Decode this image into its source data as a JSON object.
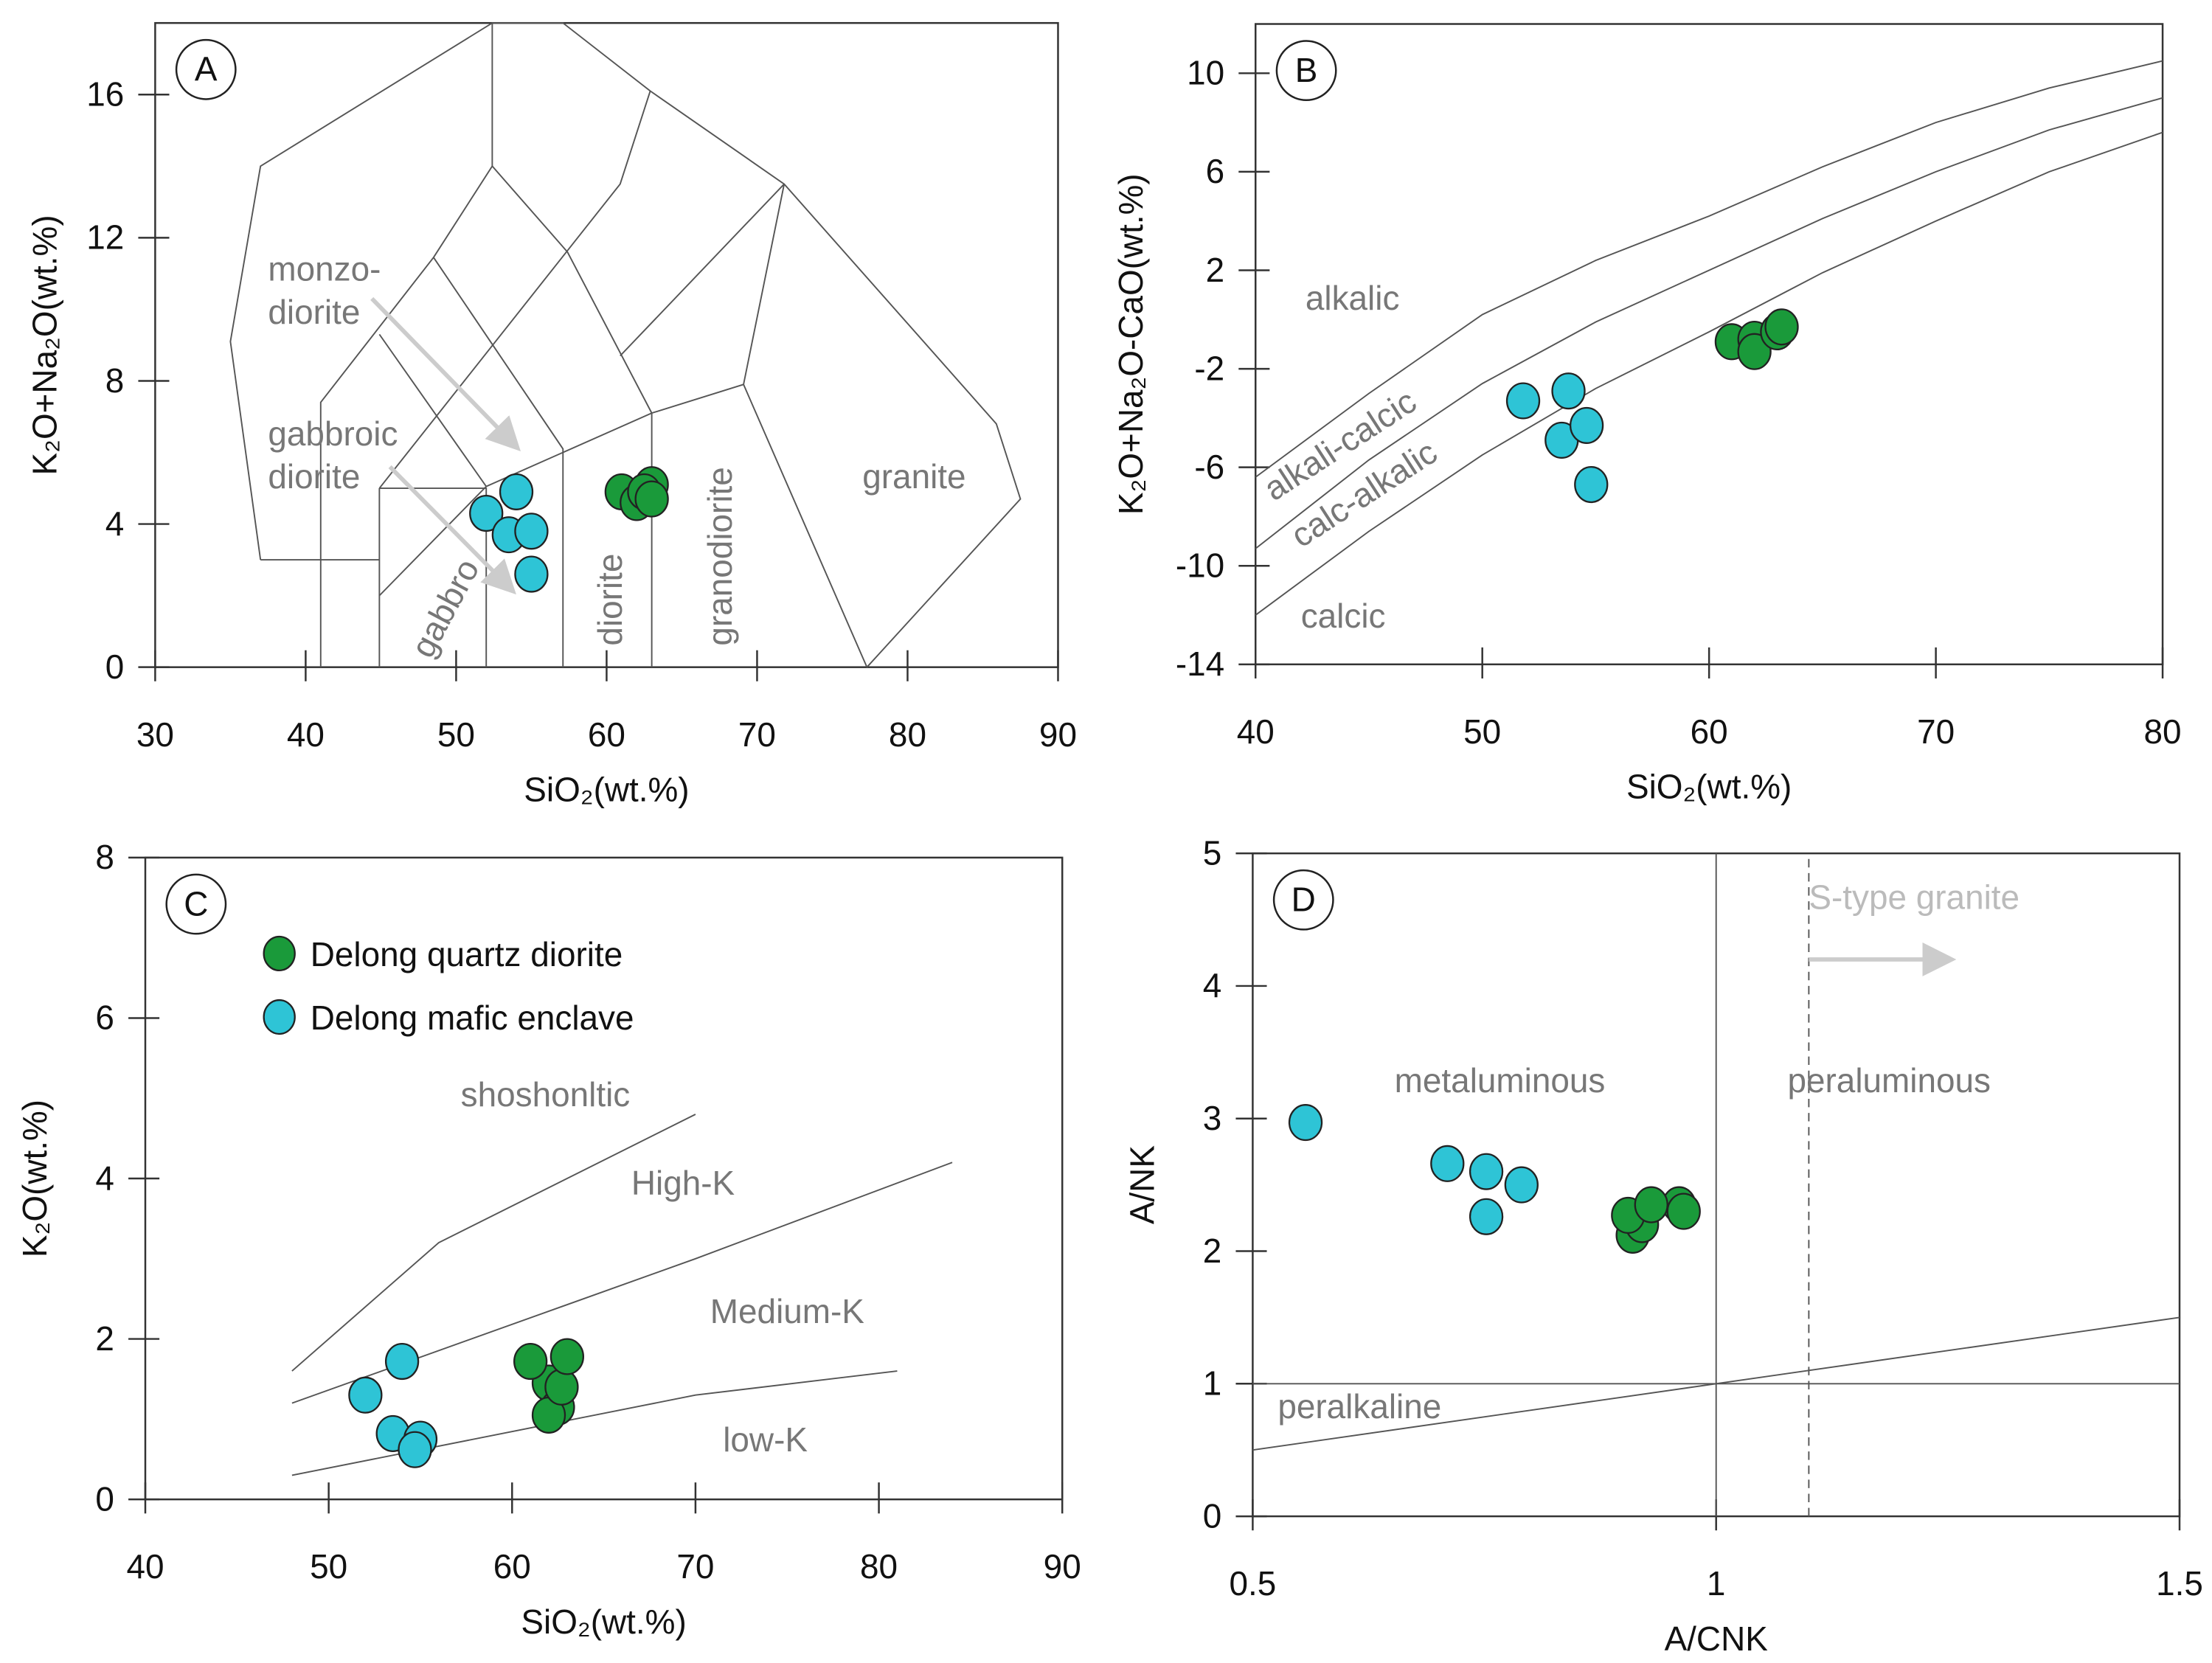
{
  "colors": {
    "quartz_diorite": "#1a9a3a",
    "mafic_enclave": "#2ec4d6",
    "boundary": "#555555",
    "region_label": "#777777",
    "arrow": "#cccccc"
  },
  "legend": [
    {
      "label": "Delong quartz diorite",
      "series": "quartz_diorite"
    },
    {
      "label": "Delong mafic enclave",
      "series": "mafic_enclave"
    }
  ],
  "chart_data": [
    {
      "id": "A",
      "type": "scatter",
      "panel_label": "A",
      "xlabel": "SiO₂(wt.%)",
      "ylabel": "K₂O+Na₂O(wt.%)",
      "xlim": [
        30,
        90
      ],
      "ylim": [
        0,
        18
      ],
      "xticks": [
        30,
        40,
        50,
        60,
        70,
        80,
        90
      ],
      "yticks": [
        0,
        4,
        8,
        12,
        16
      ],
      "series": [
        {
          "name": "Delong quartz diorite",
          "key": "quartz_diorite",
          "points": [
            [
              61,
              4.9
            ],
            [
              62,
              4.6
            ],
            [
              63,
              5.1
            ],
            [
              62.5,
              4.9
            ],
            [
              63,
              4.7
            ]
          ]
        },
        {
          "name": "Delong mafic enclave",
          "key": "mafic_enclave",
          "points": [
            [
              52,
              4.3
            ],
            [
              54,
              4.9
            ],
            [
              53.5,
              3.7
            ],
            [
              55,
              3.8
            ],
            [
              55,
              2.6
            ]
          ]
        }
      ],
      "boundaries": [
        [
          [
            37,
            3
          ],
          [
            35,
            9.1
          ],
          [
            37,
            14
          ],
          [
            52.4,
            18
          ],
          [
            57.1,
            18
          ],
          [
            62.9,
            16.1
          ],
          [
            71.8,
            13.5
          ],
          [
            85.9,
            6.8
          ],
          [
            87.5,
            4.7
          ],
          [
            77.3,
            0
          ]
        ],
        [
          [
            52.4,
            18
          ],
          [
            52.4,
            14
          ]
        ],
        [
          [
            52.4,
            14
          ],
          [
            48.5,
            11.45
          ],
          [
            41,
            7.4
          ],
          [
            41,
            0
          ]
        ],
        [
          [
            52.4,
            14
          ],
          [
            57.4,
            11.6
          ],
          [
            63,
            7.1
          ],
          [
            63,
            0
          ]
        ],
        [
          [
            62.9,
            16.1
          ],
          [
            60.9,
            13.5
          ],
          [
            44.9,
            5.0
          ]
        ],
        [
          [
            48.5,
            11.45
          ],
          [
            57.1,
            6.1
          ],
          [
            57.1,
            0
          ]
        ],
        [
          [
            44.9,
            9.3
          ],
          [
            52,
            5.05
          ]
        ],
        [
          [
            71.8,
            13.5
          ],
          [
            69.1,
            7.9
          ],
          [
            77.3,
            0
          ]
        ],
        [
          [
            71.8,
            13.5
          ],
          [
            60.9,
            8.7
          ]
        ],
        [
          [
            52,
            5.05
          ],
          [
            63,
            7.1
          ],
          [
            69.1,
            7.9
          ]
        ],
        [
          [
            44.9,
            5.0
          ],
          [
            52,
            5.0
          ],
          [
            52,
            0
          ]
        ],
        [
          [
            44.9,
            5.0
          ],
          [
            44.9,
            0
          ]
        ],
        [
          [
            37,
            3
          ],
          [
            44.9,
            3
          ]
        ],
        [
          [
            44.9,
            2.0
          ],
          [
            52,
            5.05
          ]
        ]
      ],
      "arrows": [
        [
          [
            44.4,
            10.3
          ],
          [
            53.9,
            6.2
          ]
        ],
        [
          [
            45.6,
            5.6
          ],
          [
            53.6,
            2.2
          ]
        ]
      ],
      "region_labels": [
        {
          "text": "monzo-",
          "x": 37.5,
          "y": 10.8,
          "rot": 0
        },
        {
          "text": "diorite",
          "x": 37.5,
          "y": 9.6,
          "rot": 0
        },
        {
          "text": "gabbroic",
          "x": 37.5,
          "y": 6.2,
          "rot": 0
        },
        {
          "text": "diorite",
          "x": 37.5,
          "y": 5.0,
          "rot": 0
        },
        {
          "text": "gabbro",
          "x": 48.3,
          "y": 0.2,
          "rot": -62
        },
        {
          "text": "diorite",
          "x": 61,
          "y": 0.6,
          "rot": -90
        },
        {
          "text": "granodiorite",
          "x": 68.3,
          "y": 0.6,
          "rot": -90
        },
        {
          "text": "granite",
          "x": 77,
          "y": 5.0,
          "rot": 0
        }
      ]
    },
    {
      "id": "B",
      "type": "scatter",
      "panel_label": "B",
      "xlabel": "SiO₂(wt.%)",
      "ylabel": "K₂O+Na₂O-CaO(wt.%)",
      "xlim": [
        40,
        80
      ],
      "ylim": [
        -14,
        12
      ],
      "xticks": [
        40,
        50,
        60,
        70,
        80
      ],
      "yticks": [
        -14,
        -10,
        -6,
        -2,
        2,
        6,
        10
      ],
      "series": [
        {
          "name": "Delong quartz diorite",
          "key": "quartz_diorite",
          "points": [
            [
              61,
              -0.9
            ],
            [
              62,
              -0.8
            ],
            [
              62,
              -1.3
            ],
            [
              63,
              -0.5
            ],
            [
              63.2,
              -0.3
            ]
          ]
        },
        {
          "name": "Delong mafic enclave",
          "key": "mafic_enclave",
          "points": [
            [
              51.8,
              -3.3
            ],
            [
              53.8,
              -2.9
            ],
            [
              53.5,
              -4.9
            ],
            [
              54.6,
              -4.3
            ],
            [
              54.8,
              -6.7
            ]
          ]
        }
      ],
      "boundaries": [
        [
          [
            40,
            -6.4
          ],
          [
            45,
            -3.0
          ],
          [
            50,
            0.2
          ],
          [
            55,
            2.4
          ],
          [
            60,
            4.2
          ],
          [
            65,
            6.2
          ],
          [
            70,
            8.0
          ],
          [
            75,
            9.4
          ],
          [
            80,
            10.5
          ]
        ],
        [
          [
            40,
            -9.3
          ],
          [
            45,
            -5.7
          ],
          [
            50,
            -2.6
          ],
          [
            55,
            -0.1
          ],
          [
            60,
            2.0
          ],
          [
            65,
            4.1
          ],
          [
            70,
            6.0
          ],
          [
            75,
            7.7
          ],
          [
            80,
            9.0
          ]
        ],
        [
          [
            40,
            -12.0
          ],
          [
            45,
            -8.6
          ],
          [
            50,
            -5.5
          ],
          [
            55,
            -2.8
          ],
          [
            60,
            -0.5
          ],
          [
            65,
            1.9
          ],
          [
            70,
            4.0
          ],
          [
            75,
            6.0
          ],
          [
            80,
            7.6
          ]
        ]
      ],
      "region_labels": [
        {
          "text": "alkalic",
          "x": 42.2,
          "y": 0.4,
          "rot": 0
        },
        {
          "text": "alkali-calcic",
          "x": 40.8,
          "y": -7.4,
          "rot": -33
        },
        {
          "text": "calc-alkalic",
          "x": 42,
          "y": -9.3,
          "rot": -33
        },
        {
          "text": "calcic",
          "x": 42,
          "y": -12.5,
          "rot": 0
        }
      ]
    },
    {
      "id": "C",
      "type": "scatter",
      "panel_label": "C",
      "xlabel": "SiO₂(wt.%)",
      "ylabel": "K₂O(wt.%)",
      "xlim": [
        40,
        90
      ],
      "ylim": [
        0,
        8
      ],
      "xticks": [
        40,
        50,
        60,
        70,
        80,
        90
      ],
      "yticks": [
        0,
        2,
        4,
        6,
        8
      ],
      "series": [
        {
          "name": "Delong quartz diorite",
          "key": "quartz_diorite",
          "points": [
            [
              62,
              1.45
            ],
            [
              62.5,
              1.15
            ],
            [
              62,
              1.05
            ],
            [
              62.7,
              1.4
            ],
            [
              61,
              1.72
            ],
            [
              63,
              1.78
            ]
          ]
        },
        {
          "name": "Delong mafic enclave",
          "key": "mafic_enclave",
          "points": [
            [
              52,
              1.3
            ],
            [
              54,
              1.72
            ],
            [
              53.5,
              0.82
            ],
            [
              55,
              0.75
            ],
            [
              54.7,
              0.62
            ]
          ]
        }
      ],
      "boundaries": [
        [
          [
            48,
            1.6
          ],
          [
            56,
            3.2
          ],
          [
            70,
            4.8
          ]
        ],
        [
          [
            48,
            1.2
          ],
          [
            70,
            3.0
          ],
          [
            84,
            4.2
          ]
        ],
        [
          [
            48,
            0.3
          ],
          [
            70,
            1.3
          ],
          [
            81,
            1.6
          ]
        ]
      ],
      "region_labels": [
        {
          "text": "shoshonltic",
          "x": 57.2,
          "y": 4.9,
          "rot": 0
        },
        {
          "text": "High-K",
          "x": 66.5,
          "y": 3.8,
          "rot": 0
        },
        {
          "text": "Medium-K",
          "x": 70.8,
          "y": 2.2,
          "rot": 0
        },
        {
          "text": "low-K",
          "x": 71.5,
          "y": 0.6,
          "rot": 0
        }
      ]
    },
    {
      "id": "D",
      "type": "scatter",
      "panel_label": "D",
      "xlabel": "A/CNK",
      "ylabel": "A/NK",
      "xlim": [
        0.5,
        1.5
      ],
      "ylim": [
        0,
        5
      ],
      "xticks": [
        0.5,
        1,
        1.5
      ],
      "yticks": [
        0,
        1,
        2,
        3,
        4,
        5
      ],
      "series": [
        {
          "name": "Delong quartz diorite",
          "key": "quartz_diorite",
          "points": [
            [
              0.91,
              2.12
            ],
            [
              0.92,
              2.2
            ],
            [
              0.905,
              2.27
            ],
            [
              0.96,
              2.35
            ],
            [
              0.965,
              2.3
            ],
            [
              0.93,
              2.35
            ]
          ]
        },
        {
          "name": "Delong mafic enclave",
          "key": "mafic_enclave",
          "points": [
            [
              0.557,
              2.97
            ],
            [
              0.71,
              2.66
            ],
            [
              0.752,
              2.6
            ],
            [
              0.79,
              2.5
            ],
            [
              0.752,
              2.26
            ]
          ]
        }
      ],
      "boundaries": [
        [
          [
            1,
            0
          ],
          [
            1,
            5
          ]
        ],
        [
          [
            0.5,
            1
          ],
          [
            1.5,
            1
          ]
        ],
        [
          [
            0.5,
            0.5
          ],
          [
            1.5,
            1.5
          ]
        ]
      ],
      "dashed": [
        [
          [
            1.1,
            0
          ],
          [
            1.1,
            5
          ]
        ]
      ],
      "arrows": [
        [
          [
            1.1,
            4.2
          ],
          [
            1.25,
            4.2
          ]
        ]
      ],
      "region_labels": [
        {
          "text": "metaluminous",
          "x": 0.653,
          "y": 3.2,
          "rot": 0
        },
        {
          "text": "peraluminous",
          "x": 1.077,
          "y": 3.2,
          "rot": 0
        },
        {
          "text": "peralkaline",
          "x": 0.527,
          "y": 0.74,
          "rot": 0
        },
        {
          "text": "S-type granite",
          "x": 1.1,
          "y": 4.58,
          "rot": 0,
          "faint": true
        }
      ]
    }
  ]
}
